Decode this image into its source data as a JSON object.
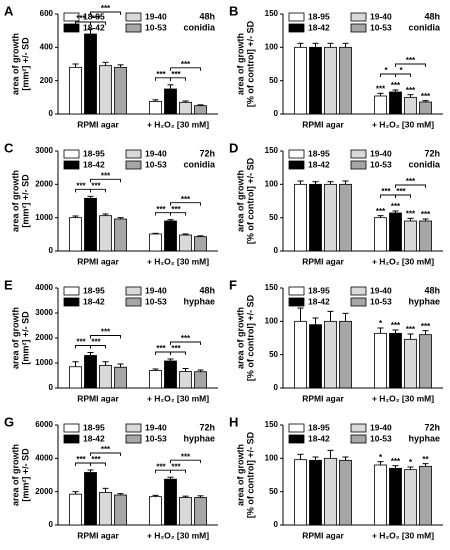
{
  "chart_data": [
    {
      "type": "bar",
      "panel": "A",
      "ylabel": [
        "area of growth",
        "[mm²] +/- SD"
      ],
      "annotations": [
        "48h",
        "conidia"
      ],
      "categories": [
        "RPMI agar",
        "+ H₂O₂ [30 mM]"
      ],
      "ylim": [
        0,
        600
      ],
      "yticks": [
        0,
        200,
        400,
        600
      ],
      "series": [
        {
          "name": "18-95",
          "color": "#ffffff",
          "values": [
            280,
            75
          ],
          "errors": [
            20,
            10
          ]
        },
        {
          "name": "18-42",
          "color": "#000000",
          "values": [
            480,
            150
          ],
          "errors": [
            30,
            25
          ]
        },
        {
          "name": "19-40",
          "color": "#d9d9d9",
          "values": [
            290,
            70
          ],
          "errors": [
            20,
            8
          ]
        },
        {
          "name": "10-53",
          "color": "#a6a6a6",
          "values": [
            280,
            50
          ],
          "errors": [
            15,
            5
          ]
        }
      ],
      "brackets": [
        {
          "category": "RPMI agar",
          "between": [
            "18-95",
            "18-42"
          ],
          "label": "***"
        },
        {
          "category": "RPMI agar",
          "between": [
            "18-42",
            "19-40"
          ],
          "label": "***"
        },
        {
          "category": "RPMI agar",
          "between": [
            "18-42",
            "10-53"
          ],
          "label": "***"
        },
        {
          "category": "+ H₂O₂ [30 mM]",
          "between": [
            "18-95",
            "18-42"
          ],
          "label": "***"
        },
        {
          "category": "+ H₂O₂ [30 mM]",
          "between": [
            "18-42",
            "19-40"
          ],
          "label": "***"
        },
        {
          "category": "+ H₂O₂ [30 mM]",
          "between": [
            "18-42",
            "10-53"
          ],
          "label": "***"
        }
      ]
    },
    {
      "type": "bar",
      "panel": "B",
      "ylabel": [
        "area of growth",
        "[% of control] +/- SD"
      ],
      "annotations": [
        "48h",
        "conidia"
      ],
      "categories": [
        "RPMI agar",
        "+ H₂O₂ [30 mM]"
      ],
      "ylim": [
        0,
        150
      ],
      "yticks": [
        0,
        50,
        100,
        150
      ],
      "series": [
        {
          "name": "18-95",
          "color": "#ffffff",
          "values": [
            100,
            27
          ],
          "errors": [
            6,
            4
          ],
          "stars": [
            null,
            "***"
          ]
        },
        {
          "name": "18-42",
          "color": "#000000",
          "values": [
            100,
            33
          ],
          "errors": [
            6,
            3
          ],
          "stars": [
            null,
            "***"
          ]
        },
        {
          "name": "19-40",
          "color": "#d9d9d9",
          "values": [
            100,
            25
          ],
          "errors": [
            6,
            4
          ],
          "stars": [
            null,
            "***"
          ]
        },
        {
          "name": "10-53",
          "color": "#a6a6a6",
          "values": [
            100,
            18
          ],
          "errors": [
            6,
            2
          ],
          "stars": [
            null,
            "***"
          ]
        }
      ],
      "brackets": [
        {
          "category": "+ H₂O₂ [30 mM]",
          "between": [
            "18-95",
            "18-42"
          ],
          "label": "*"
        },
        {
          "category": "+ H₂O₂ [30 mM]",
          "between": [
            "18-42",
            "19-40"
          ],
          "label": "*"
        },
        {
          "category": "+ H₂O₂ [30 mM]",
          "between": [
            "18-42",
            "10-53"
          ],
          "label": "***"
        }
      ]
    },
    {
      "type": "bar",
      "panel": "C",
      "ylabel": [
        "area of growth",
        "[mm²] +/- SD"
      ],
      "annotations": [
        "72h",
        "conidia"
      ],
      "categories": [
        "RPMI agar",
        "+ H₂O₂ [30 mM]"
      ],
      "ylim": [
        0,
        3000
      ],
      "yticks": [
        0,
        1000,
        2000,
        3000
      ],
      "series": [
        {
          "name": "18-95",
          "color": "#ffffff",
          "values": [
            1000,
            510
          ],
          "errors": [
            50,
            20
          ]
        },
        {
          "name": "18-42",
          "color": "#000000",
          "values": [
            1580,
            900
          ],
          "errors": [
            60,
            40
          ]
        },
        {
          "name": "19-40",
          "color": "#d9d9d9",
          "values": [
            1060,
            480
          ],
          "errors": [
            50,
            30
          ]
        },
        {
          "name": "10-53",
          "color": "#a6a6a6",
          "values": [
            960,
            430
          ],
          "errors": [
            40,
            25
          ]
        }
      ],
      "brackets": [
        {
          "category": "RPMI agar",
          "between": [
            "18-95",
            "18-42"
          ],
          "label": "***"
        },
        {
          "category": "RPMI agar",
          "between": [
            "18-42",
            "19-40"
          ],
          "label": "***"
        },
        {
          "category": "RPMI agar",
          "between": [
            "18-42",
            "10-53"
          ],
          "label": "***"
        },
        {
          "category": "+ H₂O₂ [30 mM]",
          "between": [
            "18-95",
            "18-42"
          ],
          "label": "***"
        },
        {
          "category": "+ H₂O₂ [30 mM]",
          "between": [
            "18-42",
            "19-40"
          ],
          "label": "***"
        },
        {
          "category": "+ H₂O₂ [30 mM]",
          "between": [
            "18-42",
            "10-53"
          ],
          "label": "***"
        }
      ]
    },
    {
      "type": "bar",
      "panel": "D",
      "ylabel": [
        "area of growth",
        "[% of control] +/- SD"
      ],
      "annotations": [
        "72h",
        "conidia"
      ],
      "categories": [
        "RPMI agar",
        "+ H₂O₂ [30 mM]"
      ],
      "ylim": [
        0,
        150
      ],
      "yticks": [
        0,
        50,
        100,
        150
      ],
      "series": [
        {
          "name": "18-95",
          "color": "#ffffff",
          "values": [
            100,
            50
          ],
          "errors": [
            5,
            3
          ],
          "stars": [
            null,
            "***"
          ]
        },
        {
          "name": "18-42",
          "color": "#000000",
          "values": [
            100,
            57
          ],
          "errors": [
            4,
            3
          ],
          "stars": [
            null,
            "***"
          ]
        },
        {
          "name": "19-40",
          "color": "#d9d9d9",
          "values": [
            100,
            45
          ],
          "errors": [
            4,
            4
          ],
          "stars": [
            null,
            "***"
          ]
        },
        {
          "name": "10-53",
          "color": "#a6a6a6",
          "values": [
            100,
            45
          ],
          "errors": [
            5,
            3
          ],
          "stars": [
            null,
            "***"
          ]
        }
      ],
      "brackets": [
        {
          "category": "+ H₂O₂ [30 mM]",
          "between": [
            "18-95",
            "18-42"
          ],
          "label": "***"
        },
        {
          "category": "+ H₂O₂ [30 mM]",
          "between": [
            "18-42",
            "19-40"
          ],
          "label": "***"
        },
        {
          "category": "+ H₂O₂ [30 mM]",
          "between": [
            "18-42",
            "10-53"
          ],
          "label": "***"
        }
      ]
    },
    {
      "type": "bar",
      "panel": "E",
      "ylabel": [
        "area of growth",
        "[mm²] +/- SD"
      ],
      "annotations": [
        "48h",
        "hyphae"
      ],
      "categories": [
        "RPMI agar",
        "+ H₂O₂ [30 mM]"
      ],
      "ylim": [
        0,
        4000
      ],
      "yticks": [
        0,
        1000,
        2000,
        3000,
        4000
      ],
      "series": [
        {
          "name": "18-95",
          "color": "#ffffff",
          "values": [
            850,
            700
          ],
          "errors": [
            200,
            60
          ]
        },
        {
          "name": "18-42",
          "color": "#000000",
          "values": [
            1300,
            1080
          ],
          "errors": [
            120,
            80
          ]
        },
        {
          "name": "19-40",
          "color": "#d9d9d9",
          "values": [
            900,
            660
          ],
          "errors": [
            150,
            120
          ]
        },
        {
          "name": "10-53",
          "color": "#a6a6a6",
          "values": [
            830,
            650
          ],
          "errors": [
            130,
            70
          ]
        }
      ],
      "brackets": [
        {
          "category": "RPMI agar",
          "between": [
            "18-95",
            "18-42"
          ],
          "label": "***"
        },
        {
          "category": "RPMI agar",
          "between": [
            "18-42",
            "19-40"
          ],
          "label": "***"
        },
        {
          "category": "RPMI agar",
          "between": [
            "18-42",
            "10-53"
          ],
          "label": "***"
        },
        {
          "category": "+ H₂O₂ [30 mM]",
          "between": [
            "18-95",
            "18-42"
          ],
          "label": "***"
        },
        {
          "category": "+ H₂O₂ [30 mM]",
          "between": [
            "18-42",
            "19-40"
          ],
          "label": "***"
        },
        {
          "category": "+ H₂O₂ [30 mM]",
          "between": [
            "18-42",
            "10-53"
          ],
          "label": "***"
        }
      ]
    },
    {
      "type": "bar",
      "panel": "F",
      "ylabel": [
        "area of growth",
        "[% of control] +/- SD"
      ],
      "annotations": [
        "48h",
        "hyphae"
      ],
      "categories": [
        "RPMI agar",
        "+ H₂O₂ [30 mM]"
      ],
      "ylim": [
        0,
        150
      ],
      "yticks": [
        0,
        50,
        100,
        150
      ],
      "series": [
        {
          "name": "18-95",
          "color": "#ffffff",
          "values": [
            100,
            82
          ],
          "errors": [
            20,
            8
          ],
          "stars": [
            null,
            "*"
          ]
        },
        {
          "name": "18-42",
          "color": "#000000",
          "values": [
            95,
            82
          ],
          "errors": [
            10,
            5
          ],
          "stars": [
            null,
            "***"
          ]
        },
        {
          "name": "19-40",
          "color": "#d9d9d9",
          "values": [
            100,
            73
          ],
          "errors": [
            15,
            8
          ],
          "stars": [
            null,
            "***"
          ]
        },
        {
          "name": "10-53",
          "color": "#a6a6a6",
          "values": [
            100,
            80
          ],
          "errors": [
            12,
            6
          ],
          "stars": [
            null,
            "***"
          ]
        }
      ],
      "brackets": []
    },
    {
      "type": "bar",
      "panel": "G",
      "ylabel": [
        "area of growth",
        "[mm²] +/- SD"
      ],
      "annotations": [
        "72h",
        "hyphae"
      ],
      "categories": [
        "RPMI agar",
        "+ H₂O₂ [30 mM]"
      ],
      "ylim": [
        0,
        6000
      ],
      "yticks": [
        0,
        2000,
        4000,
        6000
      ],
      "series": [
        {
          "name": "18-95",
          "color": "#ffffff",
          "values": [
            1850,
            1700
          ],
          "errors": [
            150,
            80
          ]
        },
        {
          "name": "18-42",
          "color": "#000000",
          "values": [
            3150,
            2750
          ],
          "errors": [
            150,
            120
          ]
        },
        {
          "name": "19-40",
          "color": "#d9d9d9",
          "values": [
            1950,
            1650
          ],
          "errors": [
            250,
            80
          ]
        },
        {
          "name": "10-53",
          "color": "#a6a6a6",
          "values": [
            1800,
            1650
          ],
          "errors": [
            80,
            100
          ]
        }
      ],
      "brackets": [
        {
          "category": "RPMI agar",
          "between": [
            "18-95",
            "18-42"
          ],
          "label": "***"
        },
        {
          "category": "RPMI agar",
          "between": [
            "18-42",
            "19-40"
          ],
          "label": "***"
        },
        {
          "category": "RPMI agar",
          "between": [
            "18-42",
            "10-53"
          ],
          "label": "***"
        },
        {
          "category": "+ H₂O₂ [30 mM]",
          "between": [
            "18-95",
            "18-42"
          ],
          "label": "***"
        },
        {
          "category": "+ H₂O₂ [30 mM]",
          "between": [
            "18-42",
            "19-40"
          ],
          "label": "***"
        },
        {
          "category": "+ H₂O₂ [30 mM]",
          "between": [
            "18-42",
            "10-53"
          ],
          "label": "***"
        }
      ]
    },
    {
      "type": "bar",
      "panel": "H",
      "ylabel": [
        "area of growth",
        "[% of control] +/- SD"
      ],
      "annotations": [
        "72h",
        "hyphae"
      ],
      "categories": [
        "RPMI agar",
        "+ H₂O₂ [30 mM]"
      ],
      "ylim": [
        0,
        150
      ],
      "yticks": [
        0,
        50,
        100,
        150
      ],
      "series": [
        {
          "name": "18-95",
          "color": "#ffffff",
          "values": [
            98,
            90
          ],
          "errors": [
            8,
            5
          ],
          "stars": [
            null,
            "*"
          ]
        },
        {
          "name": "18-42",
          "color": "#000000",
          "values": [
            97,
            85
          ],
          "errors": [
            5,
            4
          ],
          "stars": [
            null,
            "***"
          ]
        },
        {
          "name": "19-40",
          "color": "#d9d9d9",
          "values": [
            100,
            83
          ],
          "errors": [
            12,
            4
          ],
          "stars": [
            null,
            "*"
          ]
        },
        {
          "name": "10-53",
          "color": "#a6a6a6",
          "values": [
            97,
            88
          ],
          "errors": [
            5,
            4
          ],
          "stars": [
            null,
            "**"
          ]
        }
      ],
      "brackets": []
    }
  ]
}
